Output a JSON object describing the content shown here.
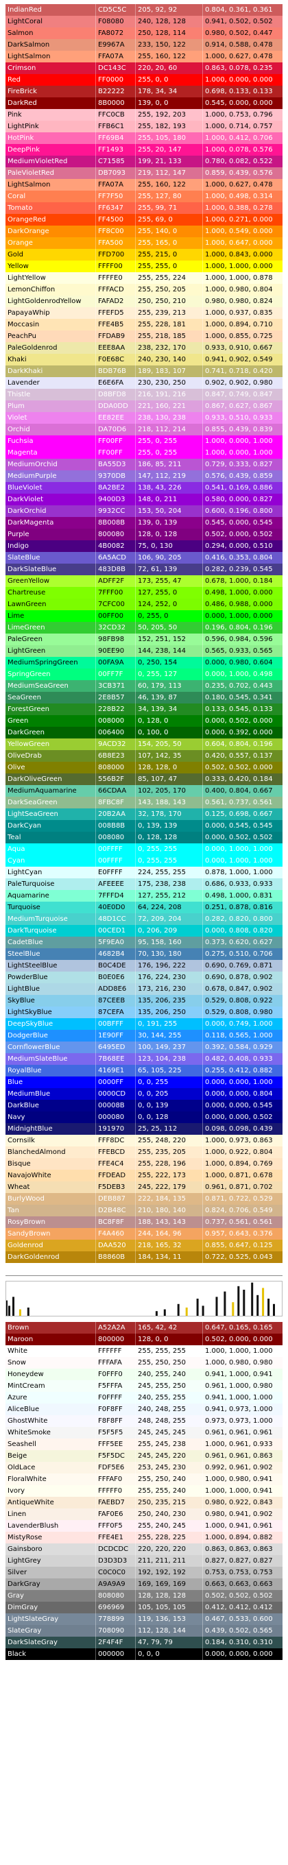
{
  "rows_top": [
    [
      "IndianRed",
      "CD5C5C",
      "205, 92, 92",
      "0.804, 0.361, 0.361",
      "#CD5C5C",
      "#ffffff"
    ],
    [
      "LightCoral",
      "F08080",
      "240, 128, 128",
      "0.941, 0.502, 0.502",
      "#F08080",
      "#000000"
    ],
    [
      "Salmon",
      "FA8072",
      "250, 128, 114",
      "0.980, 0.502, 0.447",
      "#FA8072",
      "#000000"
    ],
    [
      "DarkSalmon",
      "E9967A",
      "233, 150, 122",
      "0.914, 0.588, 0.478",
      "#E9967A",
      "#000000"
    ],
    [
      "LightSalmon",
      "FFA07A",
      "255, 160, 122",
      "1.000, 0.627, 0.478",
      "#FFA07A",
      "#000000"
    ],
    [
      "Crimson",
      "DC143C",
      "220, 20, 60",
      "0.863, 0.078, 0.235",
      "#DC143C",
      "#ffffff"
    ],
    [
      "Red",
      "FF0000",
      "255, 0, 0",
      "1.000, 0.000, 0.000",
      "#FF0000",
      "#ffffff"
    ],
    [
      "FireBrick",
      "B22222",
      "178, 34, 34",
      "0.698, 0.133, 0.133",
      "#B22222",
      "#ffffff"
    ],
    [
      "DarkRed",
      "8B0000",
      "139, 0, 0",
      "0.545, 0.000, 0.000",
      "#8B0000",
      "#ffffff"
    ],
    [
      "Pink",
      "FFC0CB",
      "255, 192, 203",
      "1.000, 0.753, 0.796",
      "#FFC0CB",
      "#000000"
    ],
    [
      "LightPink",
      "FFB6C1",
      "255, 182, 193",
      "1.000, 0.714, 0.757",
      "#FFB6C1",
      "#000000"
    ],
    [
      "HotPink",
      "FF69B4",
      "255, 105, 180",
      "1.000, 0.412, 0.706",
      "#FF69B4",
      "#ffffff"
    ],
    [
      "DeepPink",
      "FF1493",
      "255, 20, 147",
      "1.000, 0.078, 0.576",
      "#FF1493",
      "#ffffff"
    ],
    [
      "MediumVioletRed",
      "C71585",
      "199, 21, 133",
      "0.780, 0.082, 0.522",
      "#C71585",
      "#ffffff"
    ],
    [
      "PaleVioletRed",
      "DB7093",
      "219, 112, 147",
      "0.859, 0.439, 0.576",
      "#DB7093",
      "#ffffff"
    ],
    [
      "LightSalmon",
      "FFA07A",
      "255, 160, 122",
      "1.000, 0.627, 0.478",
      "#FFA07A",
      "#000000"
    ],
    [
      "Coral",
      "FF7F50",
      "255, 127, 80",
      "1.000, 0.498, 0.314",
      "#FF7F50",
      "#ffffff"
    ],
    [
      "Tomato",
      "FF6347",
      "255, 99, 71",
      "1.000, 0.388, 0.278",
      "#FF6347",
      "#ffffff"
    ],
    [
      "OrangeRed",
      "FF4500",
      "255, 69, 0",
      "1.000, 0.271, 0.000",
      "#FF4500",
      "#ffffff"
    ],
    [
      "DarkOrange",
      "FF8C00",
      "255, 140, 0",
      "1.000, 0.549, 0.000",
      "#FF8C00",
      "#ffffff"
    ],
    [
      "Orange",
      "FFA500",
      "255, 165, 0",
      "1.000, 0.647, 0.000",
      "#FFA500",
      "#ffffff"
    ],
    [
      "Gold",
      "FFD700",
      "255, 215, 0",
      "1.000, 0.843, 0.000",
      "#FFD700",
      "#000000"
    ],
    [
      "Yellow",
      "FFFF00",
      "255, 255, 0",
      "1.000, 1.000, 0.000",
      "#FFFF00",
      "#000000"
    ],
    [
      "LightYellow",
      "FFFFE0",
      "255, 255, 224",
      "1.000, 1.000, 0.878",
      "#FFFFE0",
      "#000000"
    ],
    [
      "LemonChiffon",
      "FFFACD",
      "255, 250, 205",
      "1.000, 0.980, 0.804",
      "#FFFACD",
      "#000000"
    ],
    [
      "LightGoldenrodYellow",
      "FAFAD2",
      "250, 250, 210",
      "0.980, 0.980, 0.824",
      "#FAFAD2",
      "#000000"
    ],
    [
      "PapayaWhip",
      "FFEFD5",
      "255, 239, 213",
      "1.000, 0.937, 0.835",
      "#FFEFD5",
      "#000000"
    ],
    [
      "Moccasin",
      "FFE4B5",
      "255, 228, 181",
      "1.000, 0.894, 0.710",
      "#FFE4B5",
      "#000000"
    ],
    [
      "PeachPu",
      "FFDAB9",
      "255, 218, 185",
      "1.000, 0.855, 0.725",
      "#FFDAB9",
      "#000000"
    ],
    [
      "PaleGoldenrod",
      "EEE8AA",
      "238, 232, 170",
      "0.933, 0.910, 0.667",
      "#EEE8AA",
      "#000000"
    ],
    [
      "Khaki",
      "F0E68C",
      "240, 230, 140",
      "0.941, 0.902, 0.549",
      "#F0E68C",
      "#000000"
    ],
    [
      "DarkKhaki",
      "BDB76B",
      "189, 183, 107",
      "0.741, 0.718, 0.420",
      "#BDB76B",
      "#ffffff"
    ],
    [
      "Lavender",
      "E6E6FA",
      "230, 230, 250",
      "0.902, 0.902, 0.980",
      "#E6E6FA",
      "#000000"
    ],
    [
      "Thistle",
      "D8BFD8",
      "216, 191, 216",
      "0.847, 0.749, 0.847",
      "#D8BFD8",
      "#ffffff"
    ],
    [
      "Plum",
      "DDA0DD",
      "221, 160, 221",
      "0.867, 0.627, 0.867",
      "#DDA0DD",
      "#ffffff"
    ],
    [
      "Violet",
      "EE82EE",
      "238, 130, 238",
      "0.933, 0.510, 0.933",
      "#EE82EE",
      "#ffffff"
    ],
    [
      "Orchid",
      "DA70D6",
      "218, 112, 214",
      "0.855, 0.439, 0.839",
      "#DA70D6",
      "#ffffff"
    ],
    [
      "Fuchsia",
      "FF00FF",
      "255, 0, 255",
      "1.000, 0.000, 1.000",
      "#FF00FF",
      "#ffffff"
    ],
    [
      "Magenta",
      "FF00FF",
      "255, 0, 255",
      "1.000, 0.000, 1.000",
      "#FF00FF",
      "#ffffff"
    ],
    [
      "MediumOrchid",
      "BA55D3",
      "186, 85, 211",
      "0.729, 0.333, 0.827",
      "#BA55D3",
      "#ffffff"
    ],
    [
      "MediumPurple",
      "9370DB",
      "147, 112, 219",
      "0.576, 0.439, 0.859",
      "#9370DB",
      "#ffffff"
    ],
    [
      "BlueViolet",
      "8A2BE2",
      "138, 43, 226",
      "0.541, 0.169, 0.886",
      "#8A2BE2",
      "#ffffff"
    ],
    [
      "DarkViolet",
      "9400D3",
      "148, 0, 211",
      "0.580, 0.000, 0.827",
      "#9400D3",
      "#ffffff"
    ],
    [
      "DarkOrchid",
      "9932CC",
      "153, 50, 204",
      "0.600, 0.196, 0.800",
      "#9932CC",
      "#ffffff"
    ],
    [
      "DarkMagenta",
      "8B008B",
      "139, 0, 139",
      "0.545, 0.000, 0.545",
      "#8B008B",
      "#ffffff"
    ],
    [
      "Purple",
      "800080",
      "128, 0, 128",
      "0.502, 0.000, 0.502",
      "#800080",
      "#ffffff"
    ],
    [
      "Indigo",
      "4B0082",
      "75, 0, 130",
      "0.294, 0.000, 0.510",
      "#4B0082",
      "#ffffff"
    ],
    [
      "SlateBlue",
      "6A5ACD",
      "106, 90, 205",
      "0.416, 0.353, 0.804",
      "#6A5ACD",
      "#ffffff"
    ],
    [
      "DarkSlateBlue",
      "483D8B",
      "72, 61, 139",
      "0.282, 0.239, 0.545",
      "#483D8B",
      "#ffffff"
    ],
    [
      "GreenYellow",
      "ADFF2F",
      "173, 255, 47",
      "0.678, 1.000, 0.184",
      "#ADFF2F",
      "#000000"
    ],
    [
      "Chartreuse",
      "7FFF00",
      "127, 255, 0",
      "0.498, 1.000, 0.000",
      "#7FFF00",
      "#000000"
    ],
    [
      "LawnGreen",
      "7CFC00",
      "124, 252, 0",
      "0.486, 0.988, 0.000",
      "#7CFC00",
      "#000000"
    ],
    [
      "Lime",
      "00FF00",
      "0, 255, 0",
      "0.000, 1.000, 0.000",
      "#00FF00",
      "#000000"
    ],
    [
      "LimeGreen",
      "32CD32",
      "50, 205, 50",
      "0.196, 0.804, 0.196",
      "#32CD32",
      "#ffffff"
    ],
    [
      "PaleGreen",
      "98FB98",
      "152, 251, 152",
      "0.596, 0.984, 0.596",
      "#98FB98",
      "#000000"
    ],
    [
      "LightGreen",
      "90EE90",
      "144, 238, 144",
      "0.565, 0.933, 0.565",
      "#90EE90",
      "#000000"
    ],
    [
      "MediumSpringGreen",
      "00FA9A",
      "0, 250, 154",
      "0.000, 0.980, 0.604",
      "#00FA9A",
      "#000000"
    ],
    [
      "SpringGreen",
      "00FF7F",
      "0, 255, 127",
      "0.000, 1.000, 0.498",
      "#00FF7F",
      "#ffffff"
    ],
    [
      "MediumSeaGreen",
      "3CB371",
      "60, 179, 113",
      "0.235, 0.702, 0.443",
      "#3CB371",
      "#ffffff"
    ],
    [
      "SeaGreen",
      "2E8B57",
      "46, 139, 87",
      "0.180, 0.545, 0.341",
      "#2E8B57",
      "#ffffff"
    ],
    [
      "ForestGreen",
      "228B22",
      "34, 139, 34",
      "0.133, 0.545, 0.133",
      "#228B22",
      "#ffffff"
    ],
    [
      "Green",
      "008000",
      "0, 128, 0",
      "0.000, 0.502, 0.000",
      "#008000",
      "#ffffff"
    ],
    [
      "DarkGreen",
      "006400",
      "0, 100, 0",
      "0.000, 0.392, 0.000",
      "#006400",
      "#ffffff"
    ],
    [
      "YellowGreen",
      "9ACD32",
      "154, 205, 50",
      "0.604, 0.804, 0.196",
      "#9ACD32",
      "#ffffff"
    ],
    [
      "OliveDrab",
      "6B8E23",
      "107, 142, 35",
      "0.420, 0.557, 0.137",
      "#6B8E23",
      "#ffffff"
    ],
    [
      "Olive",
      "808000",
      "128, 128, 0",
      "0.502, 0.502, 0.000",
      "#808000",
      "#ffffff"
    ],
    [
      "DarkOliveGreen",
      "556B2F",
      "85, 107, 47",
      "0.333, 0.420, 0.184",
      "#556B2F",
      "#ffffff"
    ],
    [
      "MediumAquamarine",
      "66CDAA",
      "102, 205, 170",
      "0.400, 0.804, 0.667",
      "#66CDAA",
      "#000000"
    ],
    [
      "DarkSeaGreen",
      "8FBC8F",
      "143, 188, 143",
      "0.561, 0.737, 0.561",
      "#8FBC8F",
      "#ffffff"
    ],
    [
      "LightSeaGreen",
      "20B2AA",
      "32, 178, 170",
      "0.125, 0.698, 0.667",
      "#20B2AA",
      "#ffffff"
    ],
    [
      "DarkCyan",
      "008B8B",
      "0, 139, 139",
      "0.000, 0.545, 0.545",
      "#008B8B",
      "#ffffff"
    ],
    [
      "Teal",
      "008080",
      "0, 128, 128",
      "0.000, 0.502, 0.502",
      "#008080",
      "#ffffff"
    ],
    [
      "Aqua",
      "00FFFF",
      "0, 255, 255",
      "0.000, 1.000, 1.000",
      "#00FFFF",
      "#ffffff"
    ],
    [
      "Cyan",
      "00FFFF",
      "0, 255, 255",
      "0.000, 1.000, 1.000",
      "#00FFFF",
      "#ffffff"
    ],
    [
      "LightCyan",
      "E0FFFF",
      "224, 255, 255",
      "0.878, 1.000, 1.000",
      "#E0FFFF",
      "#000000"
    ],
    [
      "PaleTurquoise",
      "AFEEEE",
      "175, 238, 238",
      "0.686, 0.933, 0.933",
      "#AFEEEE",
      "#000000"
    ],
    [
      "Aquamarine",
      "7FFFD4",
      "127, 255, 212",
      "0.498, 1.000, 0.831",
      "#7FFFD4",
      "#000000"
    ],
    [
      "Turquoise",
      "40E0D0",
      "64, 224, 208",
      "0.251, 0.878, 0.816",
      "#40E0D0",
      "#000000"
    ],
    [
      "MediumTurquoise",
      "48D1CC",
      "72, 209, 204",
      "0.282, 0.820, 0.800",
      "#48D1CC",
      "#ffffff"
    ],
    [
      "DarkTurquoise",
      "00CED1",
      "0, 206, 209",
      "0.000, 0.808, 0.820",
      "#00CED1",
      "#ffffff"
    ],
    [
      "CadetBlue",
      "5F9EA0",
      "95, 158, 160",
      "0.373, 0.620, 0.627",
      "#5F9EA0",
      "#ffffff"
    ],
    [
      "SteelBlue",
      "4682B4",
      "70, 130, 180",
      "0.275, 0.510, 0.706",
      "#4682B4",
      "#ffffff"
    ],
    [
      "LightSteelBlue",
      "B0C4DE",
      "176, 196, 222",
      "0.690, 0.769, 0.871",
      "#B0C4DE",
      "#000000"
    ],
    [
      "PowderBlue",
      "B0E0E6",
      "176, 224, 230",
      "0.690, 0.878, 0.902",
      "#B0E0E6",
      "#000000"
    ],
    [
      "LightBlue",
      "ADD8E6",
      "173, 216, 230",
      "0.678, 0.847, 0.902",
      "#ADD8E6",
      "#000000"
    ],
    [
      "SkyBlue",
      "87CEEB",
      "135, 206, 235",
      "0.529, 0.808, 0.922",
      "#87CEEB",
      "#000000"
    ],
    [
      "LightSkyBlue",
      "87CEFA",
      "135, 206, 250",
      "0.529, 0.808, 0.980",
      "#87CEFA",
      "#000000"
    ],
    [
      "DeepSkyBlue",
      "00BFFF",
      "0, 191, 255",
      "0.000, 0.749, 1.000",
      "#00BFFF",
      "#ffffff"
    ],
    [
      "DodgerBlue",
      "1E90FF",
      "30, 144, 255",
      "0.118, 0.565, 1.000",
      "#1E90FF",
      "#ffffff"
    ],
    [
      "CornflowerBlue",
      "6495ED",
      "100, 149, 237",
      "0.392, 0.584, 0.929",
      "#6495ED",
      "#ffffff"
    ],
    [
      "MediumSlateBlue",
      "7B68EE",
      "123, 104, 238",
      "0.482, 0.408, 0.933",
      "#7B68EE",
      "#ffffff"
    ],
    [
      "RoyalBlue",
      "4169E1",
      "65, 105, 225",
      "0.255, 0.412, 0.882",
      "#4169E1",
      "#ffffff"
    ],
    [
      "Blue",
      "0000FF",
      "0, 0, 255",
      "0.000, 0.000, 1.000",
      "#0000FF",
      "#ffffff"
    ],
    [
      "MediumBlue",
      "0000CD",
      "0, 0, 205",
      "0.000, 0.000, 0.804",
      "#0000CD",
      "#ffffff"
    ],
    [
      "DarkBlue",
      "00008B",
      "0, 0, 139",
      "0.000, 0.000, 0.545",
      "#00008B",
      "#ffffff"
    ],
    [
      "Navy",
      "000080",
      "0, 0, 128",
      "0.000, 0.000, 0.502",
      "#000080",
      "#ffffff"
    ],
    [
      "MidnightBlue",
      "191970",
      "25, 25, 112",
      "0.098, 0.098, 0.439",
      "#191970",
      "#ffffff"
    ],
    [
      "Cornsilk",
      "FFF8DC",
      "255, 248, 220",
      "1.000, 0.973, 0.863",
      "#FFF8DC",
      "#000000"
    ],
    [
      "BlanchedAlmond",
      "FFEBCD",
      "255, 235, 205",
      "1.000, 0.922, 0.804",
      "#FFEBCD",
      "#000000"
    ],
    [
      "Bisque",
      "FFE4C4",
      "255, 228, 196",
      "1.000, 0.894, 0.769",
      "#FFE4C4",
      "#000000"
    ],
    [
      "NavajoWhite",
      "FFDEAD",
      "255, 222, 173",
      "1.000, 0.871, 0.678",
      "#FFDEAD",
      "#000000"
    ],
    [
      "Wheat",
      "F5DEB3",
      "245, 222, 179",
      "0.961, 0.871, 0.702",
      "#F5DEB3",
      "#000000"
    ],
    [
      "BurlyWood",
      "DEB887",
      "222, 184, 135",
      "0.871, 0.722, 0.529",
      "#DEB887",
      "#ffffff"
    ],
    [
      "Tan",
      "D2B48C",
      "210, 180, 140",
      "0.824, 0.706, 0.549",
      "#D2B48C",
      "#ffffff"
    ],
    [
      "RosyBrown",
      "BC8F8F",
      "188, 143, 143",
      "0.737, 0.561, 0.561",
      "#BC8F8F",
      "#ffffff"
    ],
    [
      "SandyBrown",
      "F4A460",
      "244, 164, 96",
      "0.957, 0.643, 0.376",
      "#F4A460",
      "#ffffff"
    ],
    [
      "Goldenrod",
      "DAA520",
      "218, 165, 32",
      "0.855, 0.647, 0.125",
      "#DAA520",
      "#ffffff"
    ],
    [
      "DarkGoldenrod",
      "B8860B",
      "184, 134, 11",
      "0.722, 0.525, 0.043",
      "#B8860B",
      "#ffffff"
    ]
  ],
  "rows_bottom": [
    [
      "Brown",
      "A52A2A",
      "165, 42, 42",
      "0.647, 0.165, 0.165",
      "#A52A2A",
      "#ffffff"
    ],
    [
      "Maroon",
      "800000",
      "128, 0, 0",
      "0.502, 0.000, 0.000",
      "#800000",
      "#ffffff"
    ],
    [
      "White",
      "FFFFFF",
      "255, 255, 255",
      "1.000, 1.000, 1.000",
      "#FFFFFF",
      "#000000"
    ],
    [
      "Snow",
      "FFFAFA",
      "255, 250, 250",
      "1.000, 0.980, 0.980",
      "#FFFAFA",
      "#000000"
    ],
    [
      "Honeydew",
      "F0FFF0",
      "240, 255, 240",
      "0.941, 1.000, 0.941",
      "#F0FFF0",
      "#000000"
    ],
    [
      "MintCream",
      "F5FFFA",
      "245, 255, 250",
      "0.961, 1.000, 0.980",
      "#F5FFFA",
      "#000000"
    ],
    [
      "Azure",
      "F0FFFF",
      "240, 255, 255",
      "0.941, 1.000, 1.000",
      "#F0FFFF",
      "#000000"
    ],
    [
      "AliceBlue",
      "F0F8FF",
      "240, 248, 255",
      "0.941, 0.973, 1.000",
      "#F0F8FF",
      "#000000"
    ],
    [
      "GhostWhite",
      "F8F8FF",
      "248, 248, 255",
      "0.973, 0.973, 1.000",
      "#F8F8FF",
      "#000000"
    ],
    [
      "WhiteSmoke",
      "F5F5F5",
      "245, 245, 245",
      "0.961, 0.961, 0.961",
      "#F5F5F5",
      "#000000"
    ],
    [
      "Seashell",
      "FFF5EE",
      "255, 245, 238",
      "1.000, 0.961, 0.933",
      "#FFF5EE",
      "#000000"
    ],
    [
      "Beige",
      "F5F5DC",
      "245, 245, 220",
      "0.961, 0.961, 0.863",
      "#F5F5DC",
      "#000000"
    ],
    [
      "OldLace",
      "FDF5E6",
      "253, 245, 230",
      "0.992, 0.961, 0.902",
      "#FDF5E6",
      "#000000"
    ],
    [
      "FloralWhite",
      "FFFAF0",
      "255, 250, 240",
      "1.000, 0.980, 0.941",
      "#FFFAF0",
      "#000000"
    ],
    [
      "Ivory",
      "FFFFF0",
      "255, 255, 240",
      "1.000, 1.000, 0.941",
      "#FFFFF0",
      "#000000"
    ],
    [
      "AntiqueWhite",
      "FAEBD7",
      "250, 235, 215",
      "0.980, 0.922, 0.843",
      "#FAEBD7",
      "#000000"
    ],
    [
      "Linen",
      "FAF0E6",
      "250, 240, 230",
      "0.980, 0.941, 0.902",
      "#FAF0E6",
      "#000000"
    ],
    [
      "LavenderBlush",
      "FFF0F5",
      "255, 240, 245",
      "1.000, 0.941, 0.961",
      "#FFF0F5",
      "#000000"
    ],
    [
      "MistyRose",
      "FFE4E1",
      "255, 228, 225",
      "1.000, 0.894, 0.882",
      "#FFE4E1",
      "#000000"
    ],
    [
      "Gainsboro",
      "DCDCDC",
      "220, 220, 220",
      "0.863, 0.863, 0.863",
      "#DCDCDC",
      "#000000"
    ],
    [
      "LightGrey",
      "D3D3D3",
      "211, 211, 211",
      "0.827, 0.827, 0.827",
      "#D3D3D3",
      "#000000"
    ],
    [
      "Silver",
      "C0C0C0",
      "192, 192, 192",
      "0.753, 0.753, 0.753",
      "#C0C0C0",
      "#000000"
    ],
    [
      "DarkGray",
      "A9A9A9",
      "169, 169, 169",
      "0.663, 0.663, 0.663",
      "#A9A9A9",
      "#000000"
    ],
    [
      "Gray",
      "808080",
      "128, 128, 128",
      "0.502, 0.502, 0.502",
      "#808080",
      "#ffffff"
    ],
    [
      "DimGray",
      "696969",
      "105, 105, 105",
      "0.412, 0.412, 0.412",
      "#696969",
      "#ffffff"
    ],
    [
      "LightSlateGray",
      "778899",
      "119, 136, 153",
      "0.467, 0.533, 0.600",
      "#778899",
      "#ffffff"
    ],
    [
      "SlateGray",
      "708090",
      "112, 128, 144",
      "0.439, 0.502, 0.565",
      "#708090",
      "#ffffff"
    ],
    [
      "DarkSlateGray",
      "2F4F4F",
      "47, 79, 79",
      "0.184, 0.310, 0.310",
      "#2F4F4F",
      "#ffffff"
    ],
    [
      "Black",
      "000000",
      "0, 0, 0",
      "0.000, 0.000, 0.000",
      "#000000",
      "#ffffff"
    ]
  ],
  "strip_bars": [
    [
      0.0,
      0.45
    ],
    [
      0.01,
      0.3
    ],
    [
      0.025,
      0.55
    ],
    [
      0.05,
      0.2
    ],
    [
      0.08,
      0.25
    ],
    [
      0.55,
      0.15
    ],
    [
      0.58,
      0.2
    ],
    [
      0.63,
      0.35
    ],
    [
      0.66,
      0.25
    ],
    [
      0.7,
      0.5
    ],
    [
      0.72,
      0.3
    ],
    [
      0.77,
      0.55
    ],
    [
      0.8,
      0.7
    ],
    [
      0.83,
      0.4
    ],
    [
      0.85,
      0.85
    ],
    [
      0.87,
      0.75
    ],
    [
      0.9,
      0.95
    ],
    [
      0.92,
      0.6
    ],
    [
      0.94,
      0.8
    ],
    [
      0.96,
      0.5
    ],
    [
      0.98,
      0.35
    ]
  ],
  "strip_colors": {
    "bar": "#111111",
    "accent": "#E5C100"
  }
}
